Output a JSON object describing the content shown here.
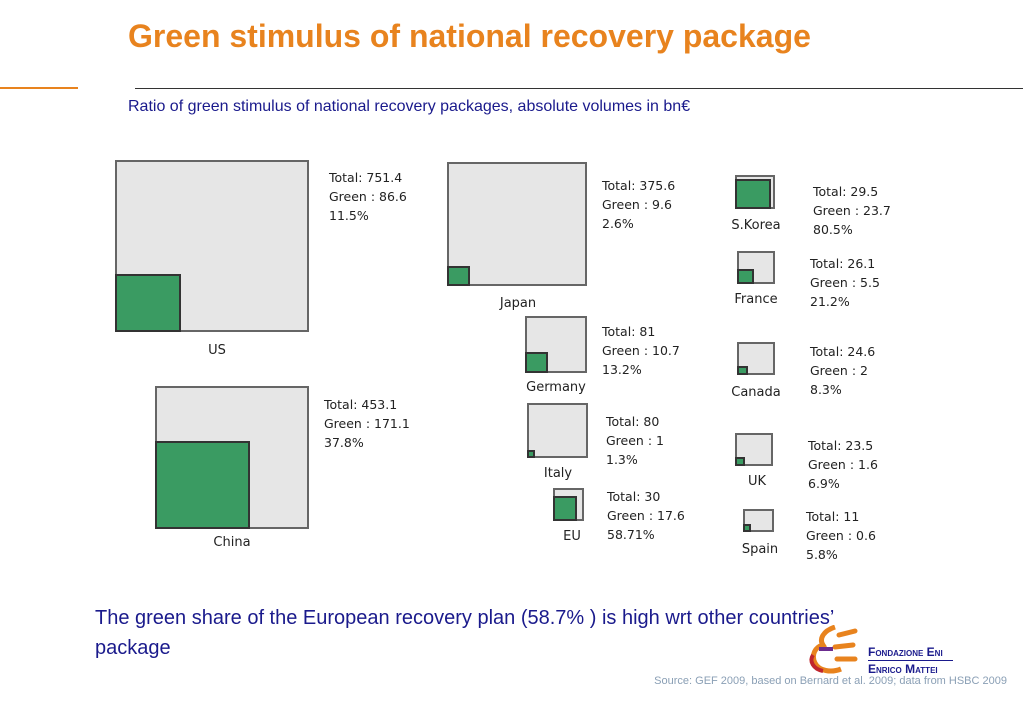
{
  "title": "Green stimulus of national recovery package",
  "subtitle": "Ratio of green stimulus of national recovery packages, absolute volumes in bn€",
  "colors": {
    "title": "#E8831E",
    "green": "#3A9B62",
    "total": "#E6E6E6",
    "text_blue": "#1a1a8c"
  },
  "chart_data": {
    "type": "nested-square",
    "unit": "bn€",
    "countries": [
      {
        "name": "US",
        "total": 751.4,
        "green": 86.6,
        "share": 11.5,
        "total_label": "Total: 751.4",
        "green_label": "Green : 86.6",
        "share_label": "11.5%"
      },
      {
        "name": "Japan",
        "total": 375.6,
        "green": 9.6,
        "share": 2.6,
        "total_label": "Total: 375.6",
        "green_label": "Green : 9.6",
        "share_label": "2.6%"
      },
      {
        "name": "S.Korea",
        "total": 29.5,
        "green": 23.7,
        "share": 80.5,
        "total_label": "Total: 29.5",
        "green_label": "Green : 23.7",
        "share_label": "80.5%"
      },
      {
        "name": "France",
        "total": 26.1,
        "green": 5.5,
        "share": 21.2,
        "total_label": "Total: 26.1",
        "green_label": "Green : 5.5",
        "share_label": "21.2%"
      },
      {
        "name": "Germany",
        "total": 81,
        "green": 10.7,
        "share": 13.2,
        "total_label": "Total: 81",
        "green_label": "Green : 10.7",
        "share_label": "13.2%"
      },
      {
        "name": "Canada",
        "total": 24.6,
        "green": 2,
        "share": 8.3,
        "total_label": "Total: 24.6",
        "green_label": "Green : 2",
        "share_label": "8.3%"
      },
      {
        "name": "China",
        "total": 453.1,
        "green": 171.1,
        "share": 37.8,
        "total_label": "Total: 453.1",
        "green_label": "Green : 171.1",
        "share_label": "37.8%"
      },
      {
        "name": "Italy",
        "total": 80,
        "green": 1,
        "share": 1.3,
        "total_label": "Total: 80",
        "green_label": "Green : 1",
        "share_label": "1.3%"
      },
      {
        "name": "UK",
        "total": 23.5,
        "green": 1.6,
        "share": 6.9,
        "total_label": "Total: 23.5",
        "green_label": "Green : 1.6",
        "share_label": "6.9%"
      },
      {
        "name": "EU",
        "total": 30,
        "green": 17.6,
        "share": 58.71,
        "total_label": "Total: 30",
        "green_label": "Green : 17.6",
        "share_label": "58.71%"
      },
      {
        "name": "Spain",
        "total": 11,
        "green": 0.6,
        "share": 5.8,
        "total_label": "Total: 11",
        "green_label": "Green : 0.6",
        "share_label": "5.8%"
      }
    ]
  },
  "conclusion": "The green share of the European recovery plan (58.7% ) is high wrt other countries’ package",
  "source": "Source: GEF 2009, based on Bernard et al. 2009; data from HSBC 2009",
  "logo": {
    "line1": "Fondazione Eni",
    "line2": "Enrico Mattei"
  }
}
